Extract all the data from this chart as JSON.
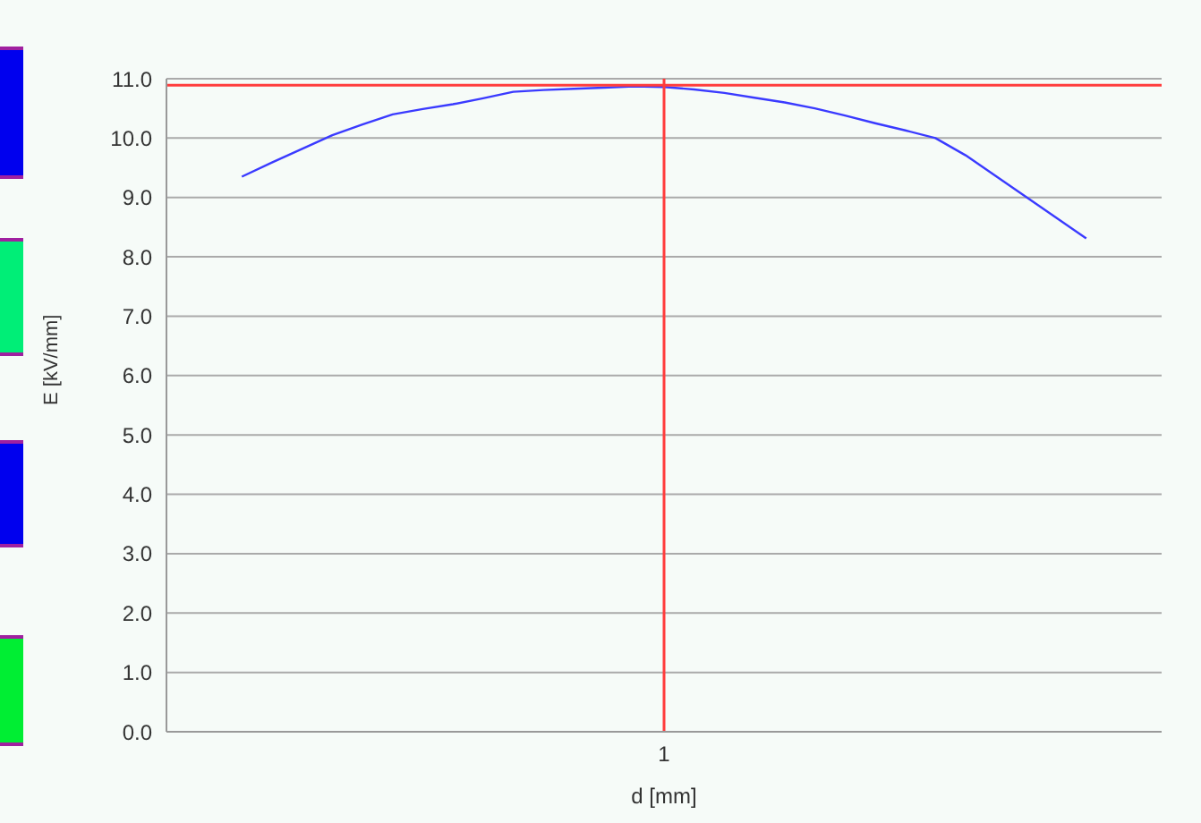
{
  "chart_data": {
    "type": "line",
    "xlabel": "d [mm]",
    "ylabel": "E [kV/mm]",
    "categories": [
      null,
      null,
      null,
      null,
      null,
      null,
      null,
      null,
      null,
      null,
      null,
      null,
      null,
      null,
      null,
      null,
      "1",
      null,
      null,
      null,
      null,
      null,
      null,
      null,
      null,
      null,
      null,
      null,
      null,
      null,
      null,
      null,
      null
    ],
    "series": [
      {
        "color": "#3a3aff",
        "values": [
          null,
          null,
          9.35,
          9.59,
          9.82,
          10.05,
          10.23,
          10.4,
          10.49,
          10.57,
          10.67,
          10.78,
          10.81,
          10.83,
          10.85,
          10.87,
          10.86,
          10.82,
          10.76,
          10.68,
          10.6,
          10.5,
          10.38,
          10.25,
          10.13,
          10.0,
          9.71,
          9.36,
          9.01,
          8.66,
          8.31,
          null,
          null
        ]
      }
    ],
    "ylim": [
      0,
      11
    ],
    "yticks": [
      {
        "value": 0,
        "label": "0.0"
      },
      {
        "value": 1,
        "label": "1.0"
      },
      {
        "value": 2,
        "label": "2.0"
      },
      {
        "value": 3,
        "label": "3.0"
      },
      {
        "value": 4,
        "label": "4.0"
      },
      {
        "value": 5,
        "label": "5.0"
      },
      {
        "value": 6,
        "label": "6.0"
      },
      {
        "value": 7,
        "label": "7.0"
      },
      {
        "value": 8,
        "label": "8.0"
      },
      {
        "value": 9,
        "label": "9.0"
      },
      {
        "value": 10,
        "label": "10.0"
      },
      {
        "value": 11,
        "label": "11.0"
      }
    ],
    "ref_lines": [
      {
        "axis": "y",
        "value": 10.89,
        "color": "#ff3c3c"
      },
      {
        "axis": "x",
        "value": "1",
        "color": "#ff3c3c"
      }
    ],
    "grid": "y",
    "marker": "none",
    "line_style": "solid"
  }
}
